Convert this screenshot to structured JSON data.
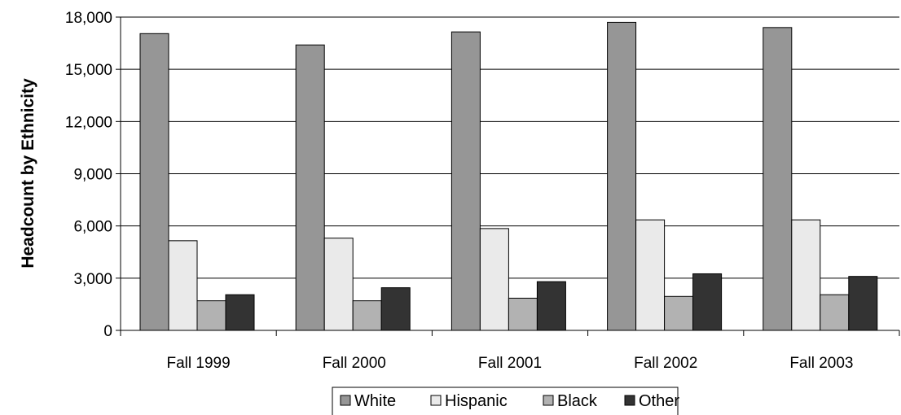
{
  "chart_data": {
    "type": "bar",
    "title": "",
    "xlabel": "",
    "ylabel": "Headcount by Ethnicity",
    "ylim": [
      0,
      18000
    ],
    "yticks": [
      0,
      3000,
      6000,
      9000,
      12000,
      15000,
      18000
    ],
    "ytick_labels": [
      "0",
      "3,000",
      "6,000",
      "9,000",
      "12,000",
      "15,000",
      "18,000"
    ],
    "grid": "horizontal",
    "legend_position": "bottom",
    "categories": [
      "Fall 1999",
      "Fall 2000",
      "Fall 2001",
      "Fall 2002",
      "Fall 2003"
    ],
    "series": [
      {
        "name": "White",
        "values": [
          17050,
          16400,
          17150,
          17700,
          17400
        ],
        "color": "#969696"
      },
      {
        "name": "Hispanic",
        "values": [
          5150,
          5300,
          5850,
          6350,
          6350
        ],
        "color": "#eaeaea"
      },
      {
        "name": "Black",
        "values": [
          1700,
          1700,
          1850,
          1950,
          2050
        ],
        "color": "#b2b2b2"
      },
      {
        "name": "Other",
        "values": [
          2050,
          2450,
          2800,
          3250,
          3100
        ],
        "color": "#333333"
      }
    ]
  }
}
